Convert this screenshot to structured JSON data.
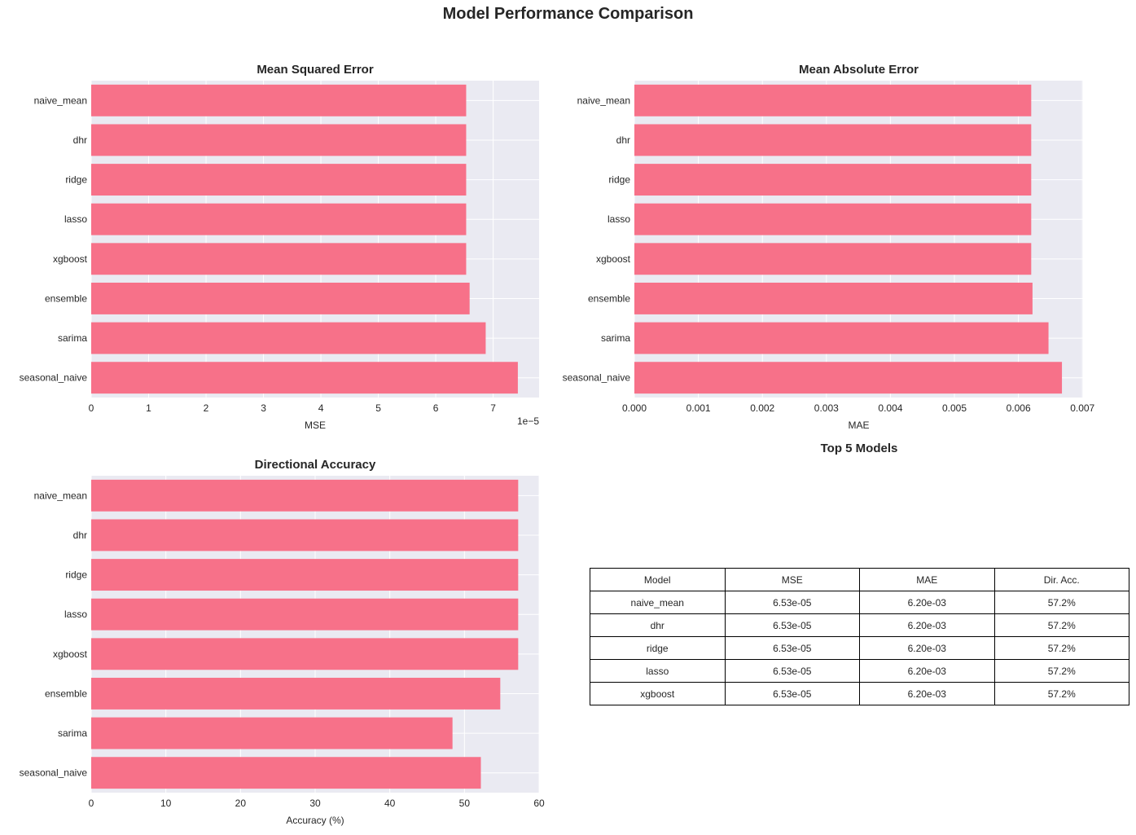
{
  "title": "Model Performance Comparison",
  "colors": {
    "bar": "#f77189",
    "plot_bg": "#eaeaf2",
    "grid": "#ffffff"
  },
  "chart_data": [
    {
      "type": "bar",
      "orientation": "horizontal",
      "title": "Mean Squared Error",
      "xlabel": "MSE",
      "offset_text": "1e−5",
      "categories": [
        "naive_mean",
        "dhr",
        "ridge",
        "lasso",
        "xgboost",
        "ensemble",
        "sarima",
        "seasonal_naive"
      ],
      "values": [
        6.53e-05,
        6.53e-05,
        6.53e-05,
        6.53e-05,
        6.53e-05,
        6.59e-05,
        6.87e-05,
        7.43e-05
      ],
      "xlim": [
        0,
        7.8e-05
      ],
      "xticks": [
        0,
        1e-05,
        2e-05,
        3e-05,
        4e-05,
        5e-05,
        6e-05,
        7e-05
      ],
      "xtick_labels": [
        "0",
        "1",
        "2",
        "3",
        "4",
        "5",
        "6",
        "7"
      ],
      "grid": true
    },
    {
      "type": "bar",
      "orientation": "horizontal",
      "title": "Mean Absolute Error",
      "xlabel": "MAE",
      "categories": [
        "naive_mean",
        "dhr",
        "ridge",
        "lasso",
        "xgboost",
        "ensemble",
        "sarima",
        "seasonal_naive"
      ],
      "values": [
        0.0062,
        0.0062,
        0.0062,
        0.0062,
        0.0062,
        0.00622,
        0.00647,
        0.00668
      ],
      "xlim": [
        0,
        0.00701
      ],
      "xticks": [
        0,
        0.001,
        0.002,
        0.003,
        0.004,
        0.005,
        0.006,
        0.007
      ],
      "xtick_labels": [
        "0.000",
        "0.001",
        "0.002",
        "0.003",
        "0.004",
        "0.005",
        "0.006",
        "0.007"
      ],
      "grid": true
    },
    {
      "type": "bar",
      "orientation": "horizontal",
      "title": "Directional Accuracy",
      "xlabel": "Accuracy (%)",
      "categories": [
        "naive_mean",
        "dhr",
        "ridge",
        "lasso",
        "xgboost",
        "ensemble",
        "sarima",
        "seasonal_naive"
      ],
      "values": [
        57.2,
        57.2,
        57.2,
        57.2,
        57.2,
        54.8,
        48.4,
        52.2
      ],
      "xlim": [
        0,
        60
      ],
      "xticks": [
        0,
        10,
        20,
        30,
        40,
        50,
        60
      ],
      "xtick_labels": [
        "0",
        "10",
        "20",
        "30",
        "40",
        "50",
        "60"
      ],
      "grid": true
    },
    {
      "type": "table",
      "title": "Top 5 Models",
      "columns": [
        "Model",
        "MSE",
        "MAE",
        "Dir. Acc."
      ],
      "rows": [
        [
          "naive_mean",
          "6.53e-05",
          "6.20e-03",
          "57.2%"
        ],
        [
          "dhr",
          "6.53e-05",
          "6.20e-03",
          "57.2%"
        ],
        [
          "ridge",
          "6.53e-05",
          "6.20e-03",
          "57.2%"
        ],
        [
          "lasso",
          "6.53e-05",
          "6.20e-03",
          "57.2%"
        ],
        [
          "xgboost",
          "6.53e-05",
          "6.20e-03",
          "57.2%"
        ]
      ]
    }
  ]
}
